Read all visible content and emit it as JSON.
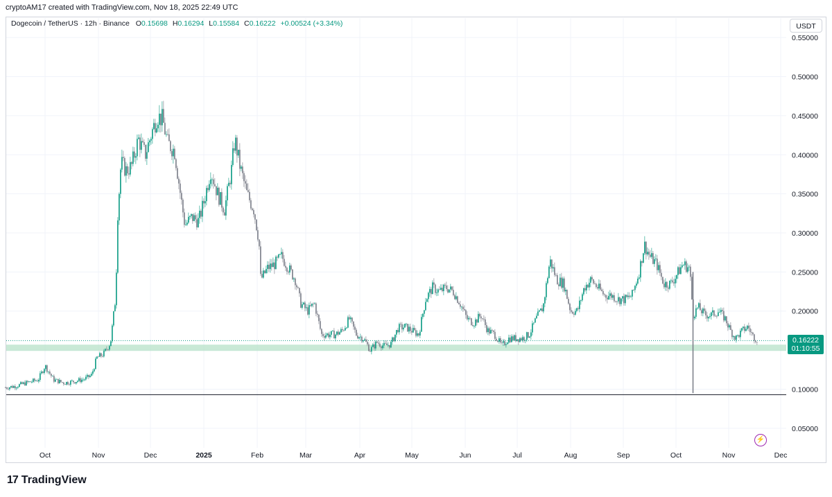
{
  "header": {
    "credit": "cryptoAM17 created with TradingView.com, Nov 18, 2025 22:49 UTC"
  },
  "legend": {
    "symbol": "Dogecoin / TetherUS · 12h · Binance",
    "o_label": "O",
    "o_value": "0.15698",
    "h_label": "H",
    "h_value": "0.16294",
    "l_label": "L",
    "l_value": "0.15584",
    "c_label": "C",
    "c_value": "0.16222",
    "change": "+0.00524 (+3.34%)"
  },
  "currency_button": "USDT",
  "price_tag": {
    "price": "0.16222",
    "countdown": "01:10:55"
  },
  "footer": {
    "logo_text": "TradingView"
  },
  "colors": {
    "up": "#089981",
    "down": "#787b86",
    "zone": "#b2dfc4",
    "accent": "#9c27b0"
  },
  "icons": {
    "bolt": "lightning-icon",
    "logo": "tradingview-logo-icon"
  },
  "chart_data": {
    "type": "candlestick",
    "title": "",
    "ylim": [
      0.025,
      0.575
    ],
    "y_ticks": [
      "0.55000",
      "0.50000",
      "0.45000",
      "0.40000",
      "0.35000",
      "0.30000",
      "0.25000",
      "0.20000",
      "0.15000",
      "0.10000",
      "0.05000"
    ],
    "y_tick_values": [
      0.55,
      0.5,
      0.45,
      0.4,
      0.35,
      0.3,
      0.25,
      0.2,
      0.15,
      0.1,
      0.05
    ],
    "x_ticks": [
      "Oct",
      "Nov",
      "Dec",
      "2025",
      "Feb",
      "Mar",
      "Apr",
      "May",
      "Jun",
      "Jul",
      "Aug",
      "Sep",
      "Oct",
      "Nov",
      "Dec"
    ],
    "x_tick_dates": [
      "2024-10-01",
      "2024-11-01",
      "2024-12-01",
      "2025-01-01",
      "2025-02-01",
      "2025-03-01",
      "2025-04-01",
      "2025-05-01",
      "2025-06-01",
      "2025-07-01",
      "2025-08-01",
      "2025-09-01",
      "2025-10-01",
      "2025-11-01",
      "2025-12-01"
    ],
    "support_zone": [
      0.149,
      0.157
    ],
    "horizontal_line": 0.093,
    "last_price": 0.16222,
    "series": [
      {
        "values": [
          [
            "2024-09-08",
            0.102
          ],
          [
            "2024-09-14",
            0.104
          ],
          [
            "2024-09-20",
            0.108
          ],
          [
            "2024-09-27",
            0.112
          ],
          [
            "2024-10-01",
            0.13
          ],
          [
            "2024-10-06",
            0.112
          ],
          [
            "2024-10-12",
            0.108
          ],
          [
            "2024-10-18",
            0.11
          ],
          [
            "2024-10-24",
            0.113
          ],
          [
            "2024-10-28",
            0.118
          ],
          [
            "2024-10-31",
            0.14
          ],
          [
            "2024-11-04",
            0.145
          ],
          [
            "2024-11-08",
            0.16
          ],
          [
            "2024-11-11",
            0.22
          ],
          [
            "2024-11-12",
            0.32
          ],
          [
            "2024-11-14",
            0.39
          ],
          [
            "2024-11-17",
            0.38
          ],
          [
            "2024-11-20",
            0.385
          ],
          [
            "2024-11-24",
            0.42
          ],
          [
            "2024-11-28",
            0.4
          ],
          [
            "2024-12-02",
            0.43
          ],
          [
            "2024-12-05",
            0.45
          ],
          [
            "2024-12-08",
            0.445
          ],
          [
            "2024-12-11",
            0.415
          ],
          [
            "2024-12-15",
            0.405
          ],
          [
            "2024-12-19",
            0.34
          ],
          [
            "2024-12-21",
            0.31
          ],
          [
            "2024-12-25",
            0.32
          ],
          [
            "2024-12-29",
            0.315
          ],
          [
            "2025-01-01",
            0.34
          ],
          [
            "2025-01-05",
            0.38
          ],
          [
            "2025-01-09",
            0.35
          ],
          [
            "2025-01-13",
            0.33
          ],
          [
            "2025-01-17",
            0.38
          ],
          [
            "2025-01-19",
            0.42
          ],
          [
            "2025-01-22",
            0.385
          ],
          [
            "2025-01-26",
            0.35
          ],
          [
            "2025-01-30",
            0.33
          ],
          [
            "2025-02-02",
            0.29
          ],
          [
            "2025-02-03",
            0.24
          ],
          [
            "2025-02-07",
            0.255
          ],
          [
            "2025-02-11",
            0.26
          ],
          [
            "2025-02-15",
            0.27
          ],
          [
            "2025-02-19",
            0.255
          ],
          [
            "2025-02-23",
            0.24
          ],
          [
            "2025-02-26",
            0.21
          ],
          [
            "2025-03-02",
            0.2
          ],
          [
            "2025-03-06",
            0.21
          ],
          [
            "2025-03-10",
            0.17
          ],
          [
            "2025-03-14",
            0.17
          ],
          [
            "2025-03-18",
            0.17
          ],
          [
            "2025-03-22",
            0.175
          ],
          [
            "2025-03-26",
            0.19
          ],
          [
            "2025-03-30",
            0.17
          ],
          [
            "2025-04-03",
            0.165
          ],
          [
            "2025-04-07",
            0.15
          ],
          [
            "2025-04-11",
            0.16
          ],
          [
            "2025-04-15",
            0.155
          ],
          [
            "2025-04-19",
            0.158
          ],
          [
            "2025-04-23",
            0.178
          ],
          [
            "2025-04-27",
            0.18
          ],
          [
            "2025-05-01",
            0.175
          ],
          [
            "2025-05-05",
            0.17
          ],
          [
            "2025-05-09",
            0.215
          ],
          [
            "2025-05-13",
            0.23
          ],
          [
            "2025-05-17",
            0.225
          ],
          [
            "2025-05-21",
            0.23
          ],
          [
            "2025-05-25",
            0.225
          ],
          [
            "2025-05-29",
            0.21
          ],
          [
            "2025-06-02",
            0.19
          ],
          [
            "2025-06-06",
            0.185
          ],
          [
            "2025-06-10",
            0.195
          ],
          [
            "2025-06-14",
            0.175
          ],
          [
            "2025-06-18",
            0.17
          ],
          [
            "2025-06-22",
            0.155
          ],
          [
            "2025-06-26",
            0.165
          ],
          [
            "2025-06-30",
            0.165
          ],
          [
            "2025-07-04",
            0.165
          ],
          [
            "2025-07-08",
            0.17
          ],
          [
            "2025-07-12",
            0.19
          ],
          [
            "2025-07-16",
            0.205
          ],
          [
            "2025-07-20",
            0.265
          ],
          [
            "2025-07-24",
            0.24
          ],
          [
            "2025-07-28",
            0.235
          ],
          [
            "2025-08-01",
            0.2
          ],
          [
            "2025-08-05",
            0.2
          ],
          [
            "2025-08-09",
            0.23
          ],
          [
            "2025-08-13",
            0.24
          ],
          [
            "2025-08-17",
            0.23
          ],
          [
            "2025-08-21",
            0.22
          ],
          [
            "2025-08-25",
            0.22
          ],
          [
            "2025-08-29",
            0.215
          ],
          [
            "2025-09-02",
            0.215
          ],
          [
            "2025-09-06",
            0.22
          ],
          [
            "2025-09-10",
            0.25
          ],
          [
            "2025-09-13",
            0.285
          ],
          [
            "2025-09-16",
            0.27
          ],
          [
            "2025-09-20",
            0.26
          ],
          [
            "2025-09-24",
            0.235
          ],
          [
            "2025-09-28",
            0.235
          ],
          [
            "2025-10-01",
            0.245
          ],
          [
            "2025-10-05",
            0.26
          ],
          [
            "2025-10-09",
            0.255
          ],
          [
            "2025-10-11",
            0.195
          ],
          [
            "2025-10-14",
            0.205
          ],
          [
            "2025-10-18",
            0.195
          ],
          [
            "2025-10-22",
            0.195
          ],
          [
            "2025-10-26",
            0.2
          ],
          [
            "2025-10-30",
            0.19
          ],
          [
            "2025-11-02",
            0.175
          ],
          [
            "2025-11-05",
            0.165
          ],
          [
            "2025-11-09",
            0.175
          ],
          [
            "2025-11-12",
            0.18
          ],
          [
            "2025-11-15",
            0.168
          ],
          [
            "2025-11-18",
            0.162
          ]
        ]
      }
    ]
  }
}
